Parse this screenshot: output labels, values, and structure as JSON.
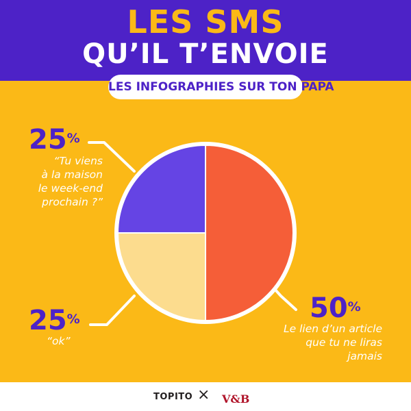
{
  "header": {
    "title_line1": "LES SMS",
    "title_line2": "QU’IL T’ENVOIE",
    "subtitle": "LES INFOGRAPHIES SUR TON PAPA"
  },
  "colors": {
    "background": "#fbb917",
    "header": "#4d22c7",
    "accent": "#4d22c7",
    "slice_orange": "#f55e38",
    "slice_cream": "#fcdc8e",
    "slice_purple": "#6544e4"
  },
  "chart_data": {
    "type": "pie",
    "slices": [
      {
        "value": 50,
        "percent_text": "50",
        "label": "Le lien d’un article que tu ne liras jamais",
        "color": "#f55e38"
      },
      {
        "value": 25,
        "percent_text": "25",
        "label": "“ok”",
        "color": "#fcdc8e"
      },
      {
        "value": 25,
        "percent_text": "25",
        "label": "“Tu viens à la maison le week-end prochain ?”",
        "color": "#6544e4"
      }
    ],
    "start": "top",
    "direction": "clockwise"
  },
  "labels": {
    "top_left": {
      "percent": "25",
      "sign": "%",
      "lines": [
        "“Tu viens",
        "à la maison",
        "le week-end",
        "prochain ?”"
      ]
    },
    "bottom_left": {
      "percent": "25",
      "sign": "%",
      "lines": [
        "“ok”"
      ]
    },
    "right": {
      "percent": "50",
      "sign": "%",
      "lines": [
        "Le lien d’un article",
        "que tu ne liras",
        "jamais"
      ]
    }
  },
  "footer": {
    "brand1": "TOPITO",
    "separator": "×",
    "brand2": "V&B"
  }
}
